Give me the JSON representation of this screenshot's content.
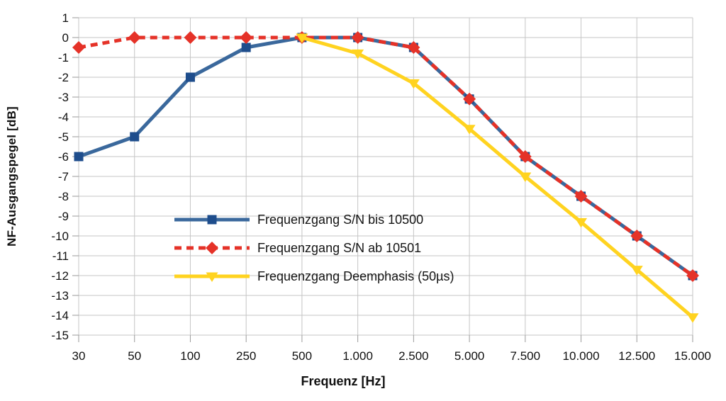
{
  "chart_data": {
    "type": "line",
    "title": "",
    "xlabel": "Frequenz [Hz]",
    "ylabel": "NF-Ausgangspegel [dB]",
    "categories": [
      "30",
      "50",
      "100",
      "250",
      "500",
      "1.000",
      "2.500",
      "5.000",
      "7.500",
      "10.000",
      "12.500",
      "15.000"
    ],
    "ylim": [
      -15,
      1
    ],
    "y_tick_step": 1,
    "grid": true,
    "legend_position": "inside-center-left",
    "series": [
      {
        "name": "Frequenzgang S/N bis 10500",
        "line_style": "solid",
        "marker": "square",
        "color": "#3A689C",
        "marker_color": "#1E4D8C",
        "values": [
          -6,
          -5,
          -2,
          -0.5,
          0,
          0,
          -0.5,
          -3.1,
          -6,
          -8,
          -10,
          -12
        ]
      },
      {
        "name": "Frequenzgang S/N ab 10501",
        "line_style": "dashed",
        "marker": "diamond",
        "color": "#E53228",
        "marker_color": "#E53228",
        "values": [
          -0.5,
          0,
          0,
          0,
          0,
          0,
          -0.5,
          -3.1,
          -6,
          -8,
          -10,
          -12
        ]
      },
      {
        "name": "Frequenzgang Deemphasis (50µs)",
        "line_style": "solid",
        "marker": "triangle-down",
        "color": "#FFD320",
        "marker_color": "#FFD320",
        "values": [
          null,
          null,
          null,
          null,
          0,
          -0.8,
          -2.3,
          -4.6,
          -7,
          -9.3,
          -11.7,
          -14.1
        ]
      }
    ],
    "colors": {
      "grid": "#C5C5C5",
      "tick": "#9A9A9A",
      "text": "#101010",
      "background": "#FFFFFF"
    }
  }
}
